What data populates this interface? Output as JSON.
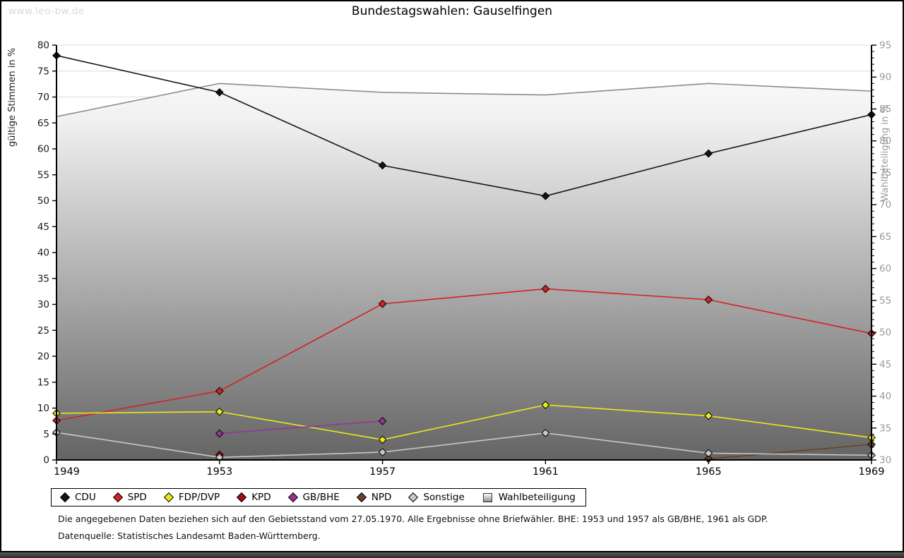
{
  "watermark": "www.leo-bw.de",
  "title": "Bundestagswahlen: Gauselfingen",
  "axes": {
    "left_label": "gültige Stimmen in %",
    "right_label": "Wahlbeteiligung in %"
  },
  "footnotes": {
    "line1": "Die angegebenen Daten beziehen sich auf den Gebietsstand vom 27.05.1970. Alle Ergebnisse ohne Briefwähler. BHE: 1953 und 1957 als GB/BHE, 1961 als GDP.",
    "line2": "Datenquelle: Statistisches Landesamt Baden-Württemberg."
  },
  "colors": {
    "grid": "#dcdcdc",
    "axis": "#000000",
    "right_tick_text": "#9a9a9a",
    "left_tick_text": "#1a1a1a",
    "area_top": "#ffffff",
    "area_bottom": "#646464"
  },
  "chart_data": {
    "type": "line",
    "x": [
      1949,
      1953,
      1957,
      1961,
      1965,
      1969
    ],
    "left_axis": {
      "label": "gültige Stimmen in %",
      "range": [
        0,
        80
      ],
      "tick_step": 5,
      "ticks": [
        0,
        5,
        10,
        15,
        20,
        25,
        30,
        35,
        40,
        45,
        50,
        55,
        60,
        65,
        70,
        75,
        80
      ],
      "grid": true
    },
    "right_axis": {
      "label": "Wahlbeteiligung in %",
      "range": [
        30,
        95
      ],
      "tick_step": 5,
      "minor_tick_step": 1,
      "ticks": [
        30,
        35,
        40,
        45,
        50,
        55,
        60,
        65,
        70,
        75,
        80,
        85,
        90,
        95
      ]
    },
    "legend_position": "bottom",
    "series": [
      {
        "name": "CDU",
        "axis": "left",
        "color": "#141414",
        "marker": "diamond",
        "values": [
          78.0,
          70.9,
          56.8,
          50.9,
          59.1,
          66.6
        ]
      },
      {
        "name": "SPD",
        "axis": "left",
        "color": "#d42121",
        "marker": "diamond",
        "values": [
          7.6,
          13.3,
          30.1,
          33.0,
          30.9,
          24.4
        ]
      },
      {
        "name": "FDP/DVP",
        "axis": "left",
        "color": "#e8e81e",
        "marker": "diamond",
        "values": [
          9.0,
          9.3,
          3.9,
          10.6,
          8.5,
          4.3
        ]
      },
      {
        "name": "KPD",
        "axis": "left",
        "color": "#a60d0d",
        "marker": "diamond",
        "values": [
          null,
          1.0,
          null,
          null,
          null,
          null
        ]
      },
      {
        "name": "GB/BHE",
        "axis": "left",
        "color": "#993399",
        "marker": "diamond",
        "values": [
          null,
          5.1,
          7.5,
          null,
          null,
          null
        ]
      },
      {
        "name": "NPD",
        "axis": "left",
        "color": "#6b4226",
        "marker": "diamond",
        "values": [
          null,
          null,
          null,
          null,
          0.2,
          3.0
        ]
      },
      {
        "name": "Sonstige",
        "axis": "left",
        "color": "#c8c8c8",
        "marker": "diamond",
        "values": [
          5.3,
          0.5,
          1.5,
          5.2,
          1.3,
          0.9
        ]
      },
      {
        "name": "Wahlbeteiligung",
        "axis": "right",
        "color": "#8c8c8c",
        "marker": "none",
        "style": "area-gradient",
        "values": [
          83.8,
          89.0,
          87.6,
          87.2,
          89.0,
          87.8
        ]
      }
    ]
  }
}
